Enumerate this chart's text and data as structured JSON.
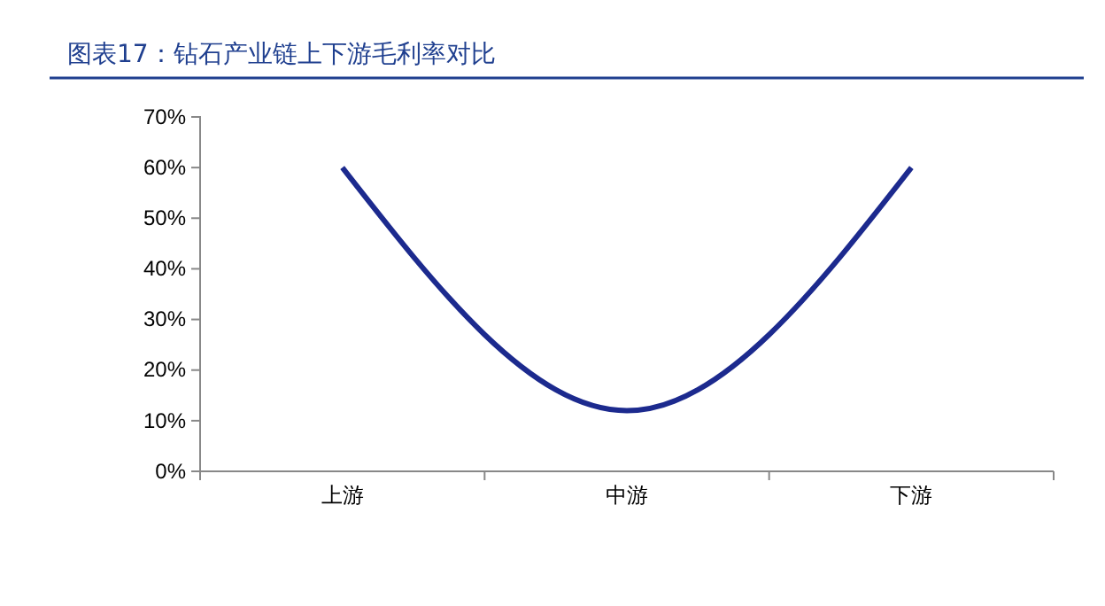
{
  "chart_data": {
    "type": "line",
    "title": "图表17：钻石产业链上下游毛利率对比",
    "categories": [
      "上游",
      "中游",
      "下游"
    ],
    "series": [
      {
        "color": "#1c2a8e",
        "values": [
          60,
          12,
          60
        ]
      }
    ],
    "ylim": [
      0,
      70
    ],
    "yticks": [
      {
        "value": 0,
        "label": "0%"
      },
      {
        "value": 10,
        "label": "10%"
      },
      {
        "value": 20,
        "label": "20%"
      },
      {
        "value": 30,
        "label": "30%"
      },
      {
        "value": 40,
        "label": "40%"
      },
      {
        "value": 50,
        "label": "50%"
      },
      {
        "value": 60,
        "label": "60%"
      },
      {
        "value": 70,
        "label": "70%"
      }
    ],
    "grid": false,
    "marker": "none",
    "line_style": "solid"
  }
}
